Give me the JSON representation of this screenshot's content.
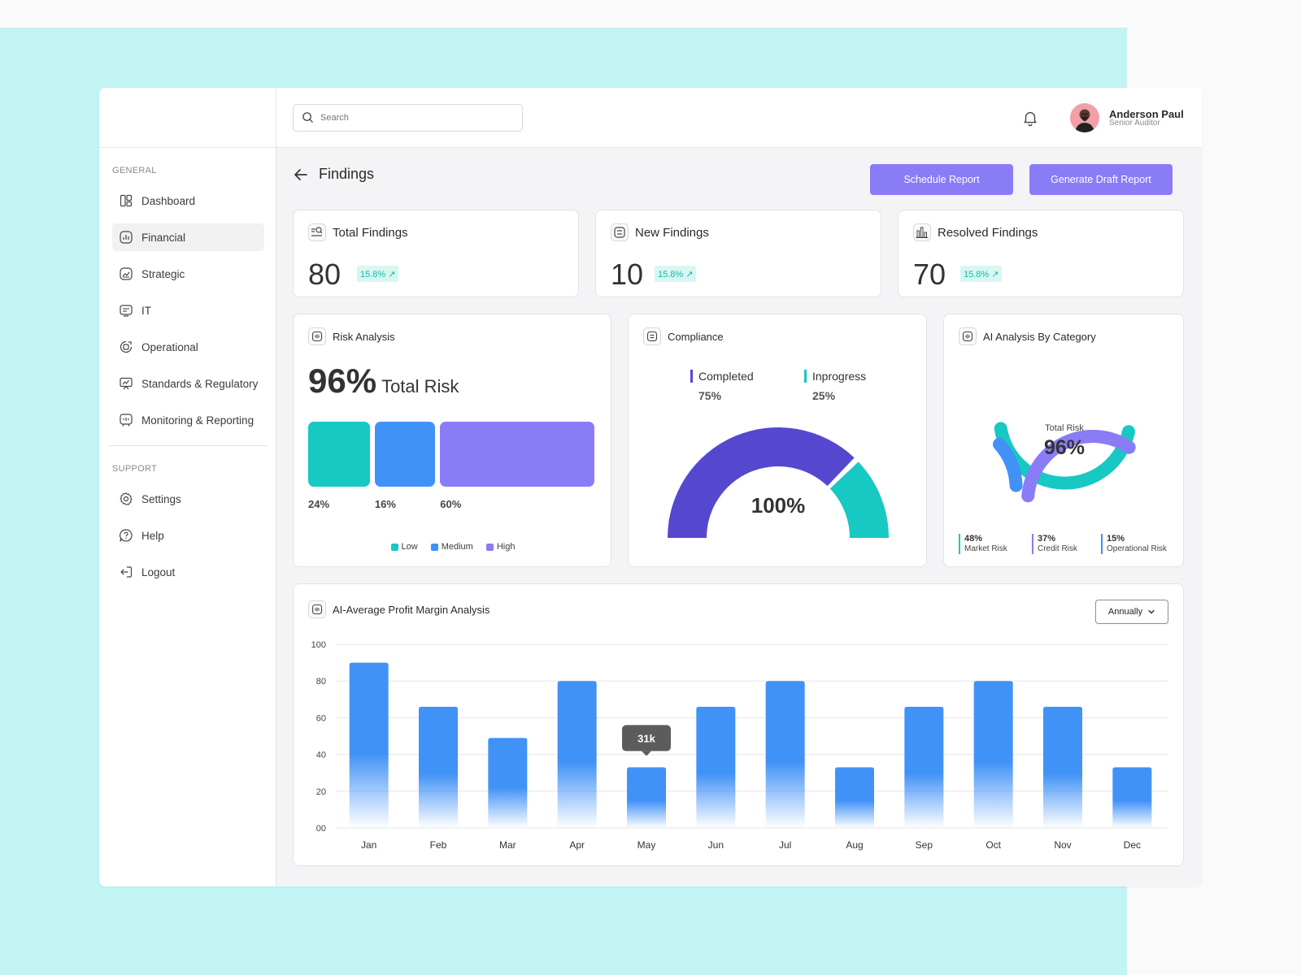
{
  "search": {
    "placeholder": "Search"
  },
  "user": {
    "name": "Anderson Paul",
    "role": "Senior Auditor"
  },
  "sidebar": {
    "general_label": "GENERAL",
    "support_label": "SUPPORT",
    "general_items": [
      {
        "label": "Dashboard",
        "icon": "dashboard-icon"
      },
      {
        "label": "Financial",
        "icon": "financial-icon",
        "active": true
      },
      {
        "label": "Strategic",
        "icon": "strategic-icon"
      },
      {
        "label": "IT",
        "icon": "it-icon"
      },
      {
        "label": "Operational",
        "icon": "operational-icon"
      },
      {
        "label": "Standards & Regulatory",
        "icon": "standards-icon"
      },
      {
        "label": "Monitoring & Reporting",
        "icon": "monitoring-icon"
      }
    ],
    "support_items": [
      {
        "label": "Settings",
        "icon": "gear-icon"
      },
      {
        "label": "Help",
        "icon": "help-icon"
      },
      {
        "label": "Logout",
        "icon": "logout-icon"
      }
    ]
  },
  "page": {
    "title": "Findings",
    "schedule_label": "Schedule Report",
    "draft_label": "Generate Draft Report"
  },
  "stats": [
    {
      "title": "Total Findings",
      "value": "80",
      "change": "15.8% ↗",
      "icon": "search-list-icon"
    },
    {
      "title": "New Findings",
      "value": "10",
      "change": "15.8% ↗",
      "icon": "checklist-icon"
    },
    {
      "title": "Resolved Findings",
      "value": "70",
      "change": "15.8% ↗",
      "icon": "bar-chart-icon"
    }
  ],
  "risk": {
    "title": "Risk Analysis",
    "value": "96%",
    "value_label": "Total Risk",
    "segments": [
      {
        "label": "Low",
        "percent": 24,
        "text": "24%",
        "color": "#17c8c3"
      },
      {
        "label": "Medium",
        "percent": 16,
        "text": "16%",
        "color": "#4192f7"
      },
      {
        "label": "High",
        "percent": 60,
        "text": "60%",
        "color": "#8a7cf7"
      }
    ]
  },
  "compliance": {
    "title": "Compliance",
    "center": "100%",
    "items": [
      {
        "label": "Completed",
        "percent": 75,
        "text": "75%",
        "color": "#5548cf"
      },
      {
        "label": "Inprogress",
        "percent": 25,
        "text": "25%",
        "color": "#17c8c3"
      }
    ]
  },
  "ai_category": {
    "title": "AI Analysis By Category",
    "center_label": "Total Risk",
    "center_value": "96%",
    "items": [
      {
        "label": "Market Risk",
        "percent": 48,
        "text": "48%",
        "color": "#17c8c3"
      },
      {
        "label": "Credit Risk",
        "percent": 37,
        "text": "37%",
        "color": "#8a7cf7"
      },
      {
        "label": "Operational Risk",
        "percent": 15,
        "text": "15%",
        "color": "#4192f7"
      }
    ]
  },
  "profit": {
    "title": "AI-Average Profit Margin Analysis",
    "period": "Annually",
    "tooltip": "31k"
  },
  "chart_data": {
    "type": "bar",
    "categories": [
      "Jan",
      "Feb",
      "Mar",
      "Apr",
      "May",
      "Jun",
      "Jul",
      "Aug",
      "Sep",
      "Oct",
      "Nov",
      "Dec"
    ],
    "values": [
      90,
      66,
      49,
      80,
      33,
      66,
      80,
      33,
      66,
      80,
      66,
      33
    ],
    "ylim": [
      0,
      100
    ],
    "yticks": [
      "00",
      "20",
      "40",
      "60",
      "80",
      "100"
    ],
    "ytick_values": [
      0,
      20,
      40,
      60,
      80,
      100
    ],
    "tooltip_category": "May",
    "grid": true,
    "color": "#4192f7"
  }
}
